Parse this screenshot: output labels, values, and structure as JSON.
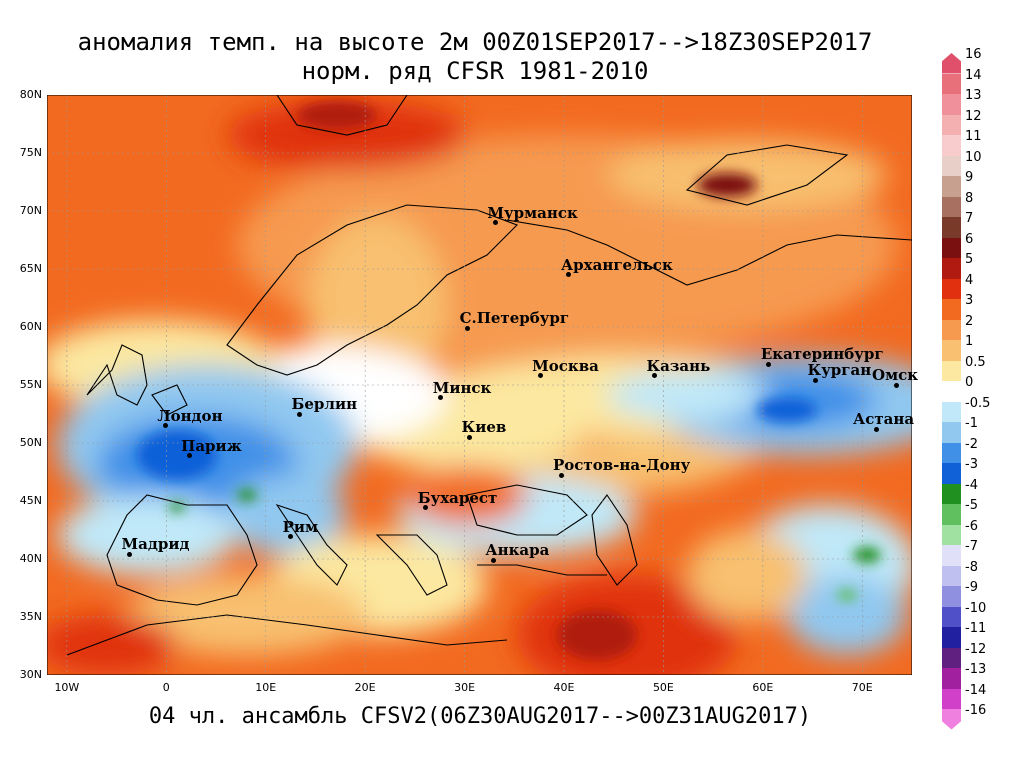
{
  "title_line1": "аномалия темп. на высоте 2м 00Z01SEP2017-->18Z30SEP2017",
  "title_line2": "норм. ряд CFSR 1981-2010",
  "footer": "04 чл. ансамбль CFSV2(06Z30AUG2017-->00Z31AUG2017)",
  "map": {
    "lon_range": [
      -12,
      75
    ],
    "lat_range": [
      30,
      80
    ],
    "lat_ticks": [
      "80N",
      "75N",
      "70N",
      "65N",
      "60N",
      "55N",
      "50N",
      "45N",
      "40N",
      "35N",
      "30N"
    ],
    "lon_ticks": [
      "10W",
      "0",
      "10E",
      "20E",
      "30E",
      "40E",
      "50E",
      "60E",
      "70E"
    ],
    "cities": [
      {
        "name": "Мурманск",
        "lon": 33.1,
        "lat": 69.0
      },
      {
        "name": "Архангельск",
        "lon": 40.5,
        "lat": 64.5
      },
      {
        "name": "С.Петербург",
        "lon": 30.3,
        "lat": 59.9
      },
      {
        "name": "Москва",
        "lon": 37.6,
        "lat": 55.8
      },
      {
        "name": "Казань",
        "lon": 49.1,
        "lat": 55.8
      },
      {
        "name": "Екатеринбург",
        "lon": 60.6,
        "lat": 56.8
      },
      {
        "name": "Курган",
        "lon": 65.3,
        "lat": 55.4
      },
      {
        "name": "Омск",
        "lon": 73.4,
        "lat": 55.0
      },
      {
        "name": "Астана",
        "lon": 71.4,
        "lat": 51.2
      },
      {
        "name": "Минск",
        "lon": 27.6,
        "lat": 53.9
      },
      {
        "name": "Киев",
        "lon": 30.5,
        "lat": 50.5
      },
      {
        "name": "Берлин",
        "lon": 13.4,
        "lat": 52.5
      },
      {
        "name": "Лондон",
        "lon": -0.1,
        "lat": 51.5
      },
      {
        "name": "Париж",
        "lon": 2.3,
        "lat": 48.9
      },
      {
        "name": "Ростов-на-Дону",
        "lon": 39.7,
        "lat": 47.2
      },
      {
        "name": "Бухарест",
        "lon": 26.1,
        "lat": 44.4
      },
      {
        "name": "Рим",
        "lon": 12.5,
        "lat": 41.9
      },
      {
        "name": "Мадрид",
        "lon": -3.7,
        "lat": 40.4
      },
      {
        "name": "Анкара",
        "lon": 32.9,
        "lat": 39.9
      }
    ]
  },
  "legend": {
    "levels": [
      {
        "label": "16",
        "color": "#e0506a"
      },
      {
        "label": "14",
        "color": "#e8707a"
      },
      {
        "label": "13",
        "color": "#f0909a"
      },
      {
        "label": "12",
        "color": "#f4b0b0"
      },
      {
        "label": "11",
        "color": "#f8cccc"
      },
      {
        "label": "10",
        "color": "#e8d0c8"
      },
      {
        "label": "9",
        "color": "#c8a090"
      },
      {
        "label": "8",
        "color": "#a87060"
      },
      {
        "label": "7",
        "color": "#7a3a2a"
      },
      {
        "label": "6",
        "color": "#7a1010"
      },
      {
        "label": "5",
        "color": "#b01a10"
      },
      {
        "label": "4",
        "color": "#e03010"
      },
      {
        "label": "3",
        "color": "#f26a20"
      },
      {
        "label": "2",
        "color": "#f69a50"
      },
      {
        "label": "1",
        "color": "#f8c070"
      },
      {
        "label": "0.5",
        "color": "#fce8a0"
      },
      {
        "label": "0",
        "color": "#ffffff"
      },
      {
        "label": "-0.5",
        "color": "#c0e8f8"
      },
      {
        "label": "-1",
        "color": "#90c8f0"
      },
      {
        "label": "-2",
        "color": "#4090e8"
      },
      {
        "label": "-3",
        "color": "#1060d8"
      },
      {
        "label": "-4",
        "color": "#209020"
      },
      {
        "label": "-5",
        "color": "#60c060"
      },
      {
        "label": "-6",
        "color": "#a0e0a0"
      },
      {
        "label": "-7",
        "color": "#e0e0f8"
      },
      {
        "label": "-8",
        "color": "#c0c0f0"
      },
      {
        "label": "-9",
        "color": "#9090e0"
      },
      {
        "label": "-10",
        "color": "#5050c8"
      },
      {
        "label": "-11",
        "color": "#2020a0"
      },
      {
        "label": "-12",
        "color": "#602080"
      },
      {
        "label": "-13",
        "color": "#a020a0"
      },
      {
        "label": "-14",
        "color": "#d040c8"
      },
      {
        "label": "-16",
        "color": "#f080e0"
      }
    ]
  }
}
